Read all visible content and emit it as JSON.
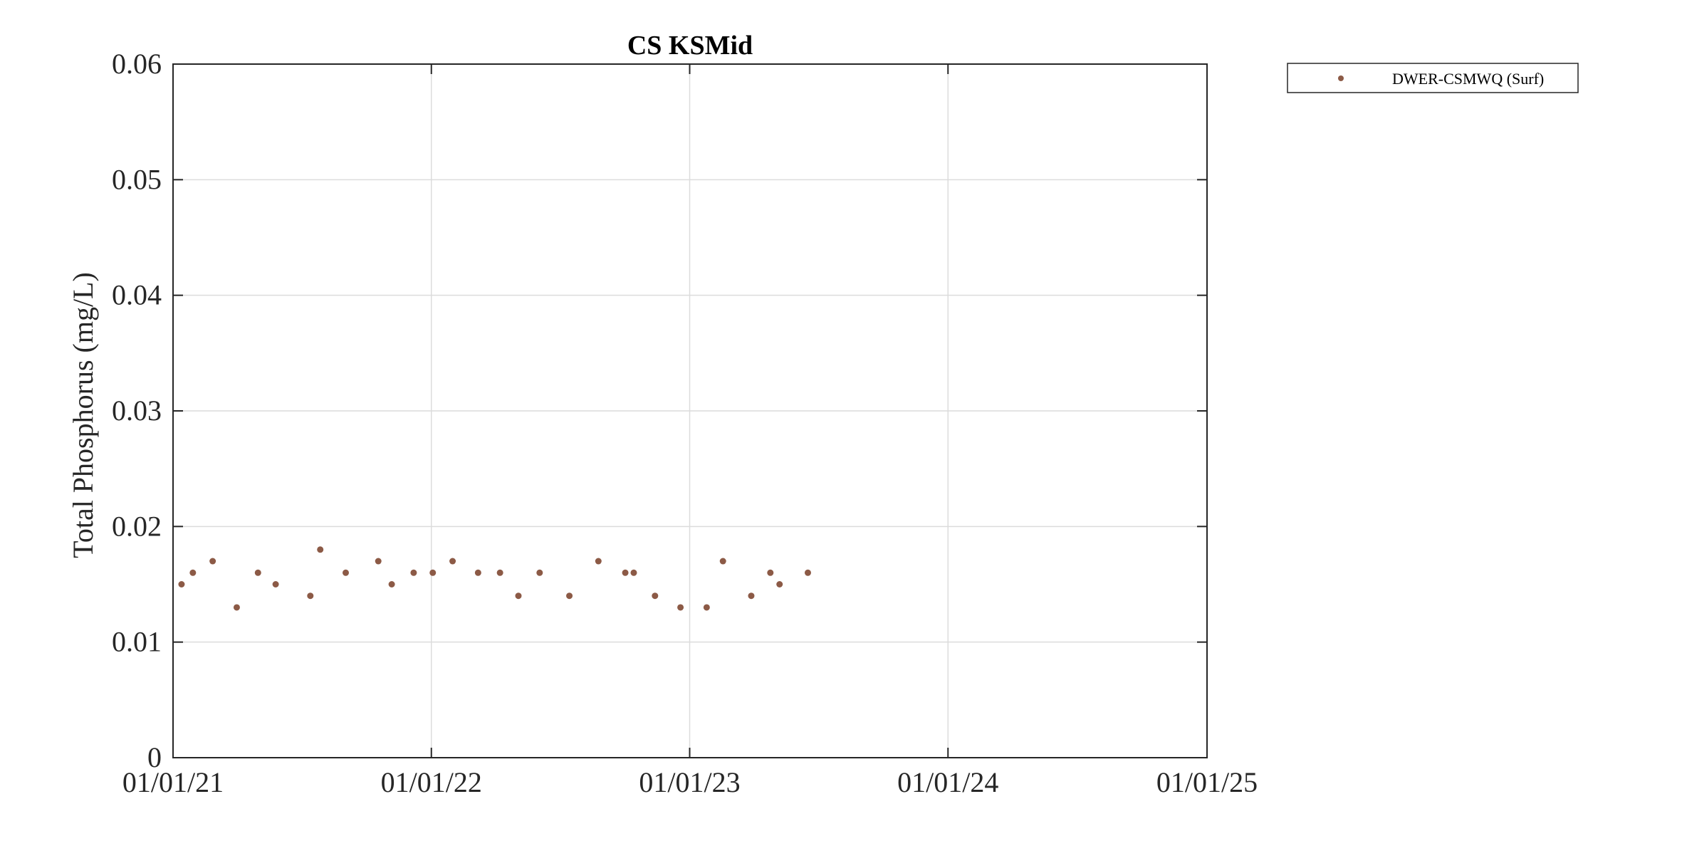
{
  "chart_data": {
    "type": "scatter",
    "title": "CS KSMid",
    "xlabel": "",
    "ylabel": "Total Phosphorus (mg/L)",
    "x_axis_type": "date",
    "xlim": [
      "2021-01-01",
      "2025-01-01"
    ],
    "xticks": [
      {
        "date": "2021-01-01",
        "label": "01/01/21"
      },
      {
        "date": "2022-01-01",
        "label": "01/01/22"
      },
      {
        "date": "2023-01-01",
        "label": "01/01/23"
      },
      {
        "date": "2024-01-01",
        "label": "01/01/24"
      },
      {
        "date": "2025-01-01",
        "label": "01/01/25"
      }
    ],
    "ylim": [
      0,
      0.06
    ],
    "yticks": [
      {
        "value": 0,
        "label": "0"
      },
      {
        "value": 0.01,
        "label": "0.01"
      },
      {
        "value": 0.02,
        "label": "0.02"
      },
      {
        "value": 0.03,
        "label": "0.03"
      },
      {
        "value": 0.04,
        "label": "0.04"
      },
      {
        "value": 0.05,
        "label": "0.05"
      },
      {
        "value": 0.06,
        "label": "0.06"
      }
    ],
    "grid": true,
    "legend_position": "outside-top-right",
    "series": [
      {
        "name": "DWER-CSMWQ (Surf)",
        "color": "#8c5a46",
        "points": [
          {
            "x": "2021-01-13",
            "y": 0.015
          },
          {
            "x": "2021-01-29",
            "y": 0.016
          },
          {
            "x": "2021-02-26",
            "y": 0.017
          },
          {
            "x": "2021-04-01",
            "y": 0.013
          },
          {
            "x": "2021-05-01",
            "y": 0.016
          },
          {
            "x": "2021-05-26",
            "y": 0.015
          },
          {
            "x": "2021-07-14",
            "y": 0.014
          },
          {
            "x": "2021-07-28",
            "y": 0.018
          },
          {
            "x": "2021-09-02",
            "y": 0.016
          },
          {
            "x": "2021-10-18",
            "y": 0.017
          },
          {
            "x": "2021-11-06",
            "y": 0.015
          },
          {
            "x": "2021-12-07",
            "y": 0.016
          },
          {
            "x": "2022-01-03",
            "y": 0.016
          },
          {
            "x": "2022-01-31",
            "y": 0.017
          },
          {
            "x": "2022-03-08",
            "y": 0.016
          },
          {
            "x": "2022-04-08",
            "y": 0.016
          },
          {
            "x": "2022-05-04",
            "y": 0.014
          },
          {
            "x": "2022-06-03",
            "y": 0.016
          },
          {
            "x": "2022-07-15",
            "y": 0.014
          },
          {
            "x": "2022-08-25",
            "y": 0.017
          },
          {
            "x": "2022-10-02",
            "y": 0.016
          },
          {
            "x": "2022-10-14",
            "y": 0.016
          },
          {
            "x": "2022-11-13",
            "y": 0.014
          },
          {
            "x": "2022-12-19",
            "y": 0.013
          },
          {
            "x": "2023-01-25",
            "y": 0.013
          },
          {
            "x": "2023-02-17",
            "y": 0.017
          },
          {
            "x": "2023-03-29",
            "y": 0.014
          },
          {
            "x": "2023-04-25",
            "y": 0.016
          },
          {
            "x": "2023-05-08",
            "y": 0.015
          },
          {
            "x": "2023-06-17",
            "y": 0.016
          }
        ]
      }
    ]
  }
}
